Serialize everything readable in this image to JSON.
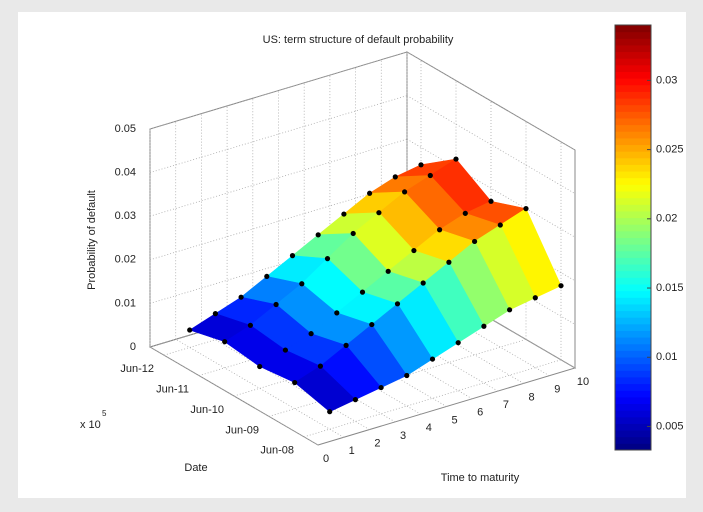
{
  "chart_data": {
    "type": "surface",
    "title": "US: term structure of default probability",
    "x_label": "Time to maturity",
    "y_label": "Date",
    "z_label": "Probability of default",
    "y_multiplier": "x 10",
    "y_multiplier_exp": "5",
    "x": [
      1,
      2,
      3,
      4,
      5,
      6,
      7,
      8,
      9,
      10
    ],
    "y": [
      "Jun-08",
      "Jun-09",
      "Jun-10",
      "Jun-11",
      "Jun-12"
    ],
    "z": [
      [
        0.004,
        0.005,
        0.006,
        0.007,
        0.009,
        0.011,
        0.013,
        0.015,
        0.016,
        0.017
      ],
      [
        0.006,
        0.008,
        0.011,
        0.014,
        0.017,
        0.02,
        0.023,
        0.026,
        0.028,
        0.03
      ],
      [
        0.005,
        0.007,
        0.009,
        0.012,
        0.015,
        0.018,
        0.021,
        0.024,
        0.026,
        0.027
      ],
      [
        0.006,
        0.008,
        0.011,
        0.014,
        0.018,
        0.022,
        0.025,
        0.028,
        0.03,
        0.032
      ],
      [
        0.004,
        0.006,
        0.008,
        0.011,
        0.014,
        0.017,
        0.02,
        0.023,
        0.025,
        0.026
      ]
    ],
    "xlim": [
      0,
      10
    ],
    "xticks": [
      0,
      1,
      2,
      3,
      4,
      5,
      6,
      7,
      8,
      9,
      10
    ],
    "zlim": [
      0,
      0.05
    ],
    "zticks": [
      0,
      0.01,
      0.02,
      0.03,
      0.04,
      0.05
    ],
    "colormap": "jet",
    "clim": [
      0.0033,
      0.034
    ],
    "cticks": [
      0.005,
      0.01,
      0.015,
      0.02,
      0.025,
      0.03
    ],
    "grid": true,
    "marker_color": "#000000"
  }
}
